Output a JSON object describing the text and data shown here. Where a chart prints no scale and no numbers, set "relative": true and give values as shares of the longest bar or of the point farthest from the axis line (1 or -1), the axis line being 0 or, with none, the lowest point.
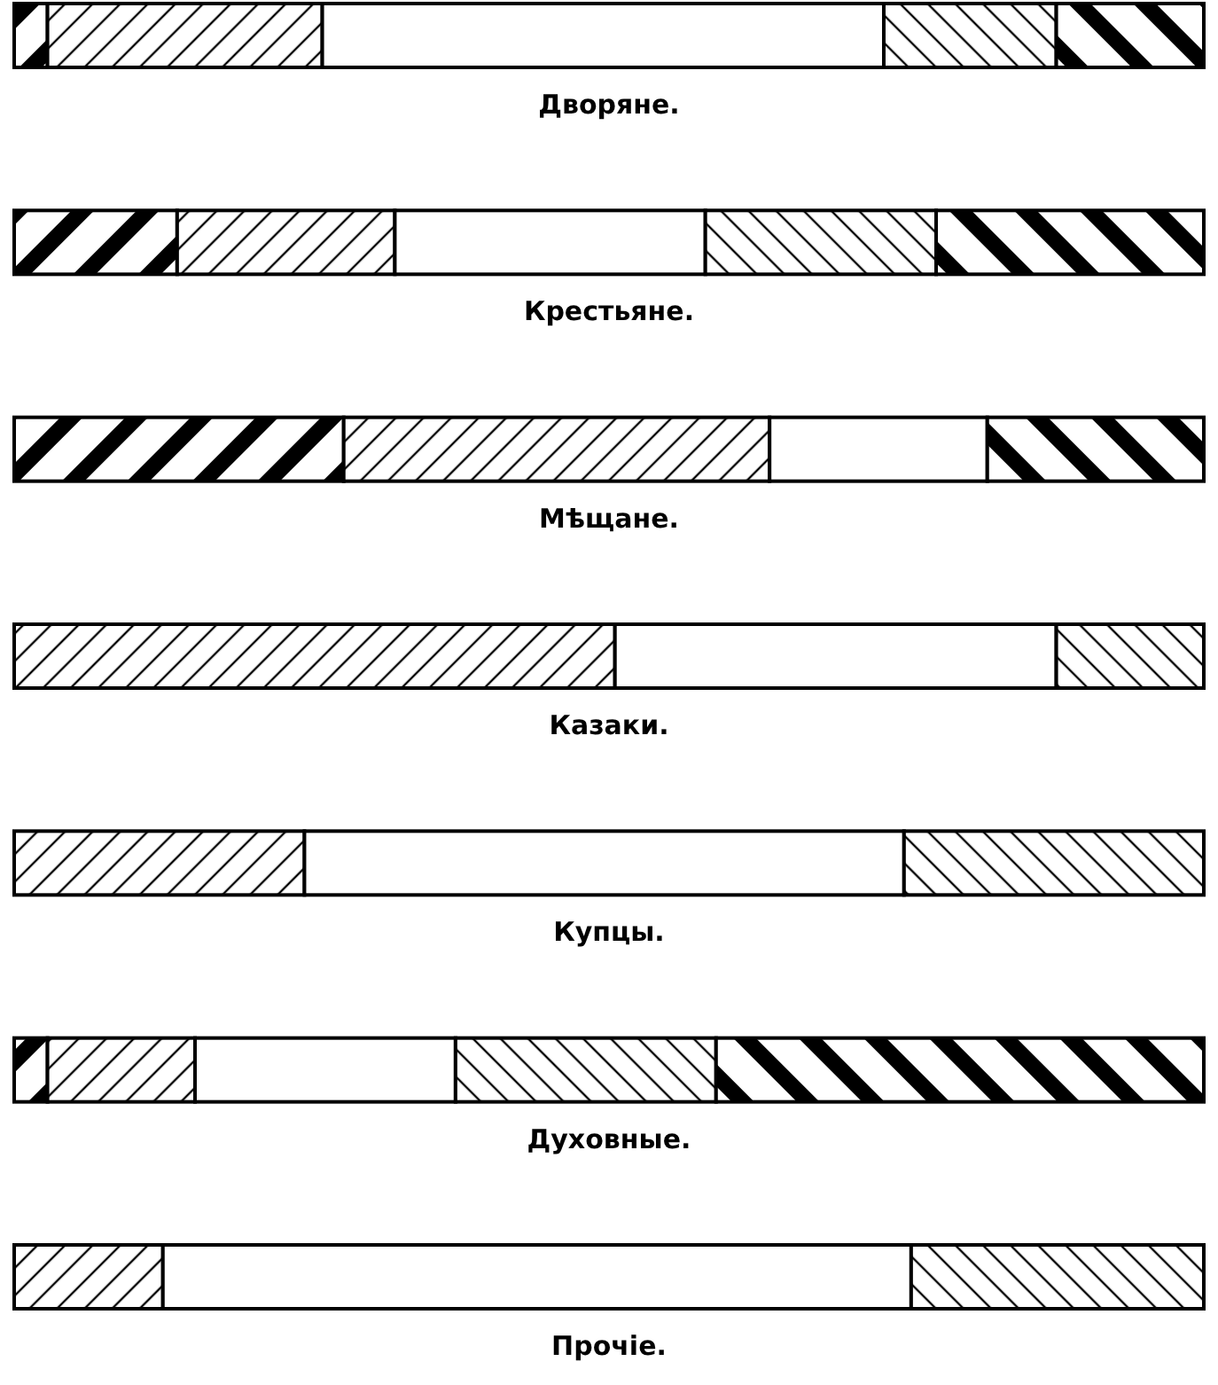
{
  "chart_data": {
    "type": "bar",
    "orientation": "horizontal",
    "stacked": true,
    "relative": true,
    "legend": false,
    "categories": [
      "Дворяне.",
      "Крестьяне.",
      "Мѣщане.",
      "Казаки.",
      "Купцы.",
      "Духовные.",
      "Прочіе."
    ],
    "series": [
      {
        "color": "#000000",
        "values": [
          0.028,
          0.137,
          0.277,
          0,
          0,
          0.028,
          0
        ]
      },
      {
        "color": "#000000",
        "values": [
          0.231,
          0.183,
          0.358,
          0.505,
          0.244,
          0.124,
          0.125
        ]
      },
      {
        "color": "#ffffff",
        "values": [
          0.472,
          0.261,
          0.183,
          0.371,
          0.504,
          0.219,
          0.629
        ]
      },
      {
        "color": "#000000",
        "values": [
          0.145,
          0.194,
          0,
          0.124,
          0.252,
          0.219,
          0.246
        ]
      },
      {
        "color": "#000000",
        "values": [
          0.124,
          0.225,
          0.182,
          0,
          0,
          0.41,
          0
        ]
      }
    ]
  }
}
